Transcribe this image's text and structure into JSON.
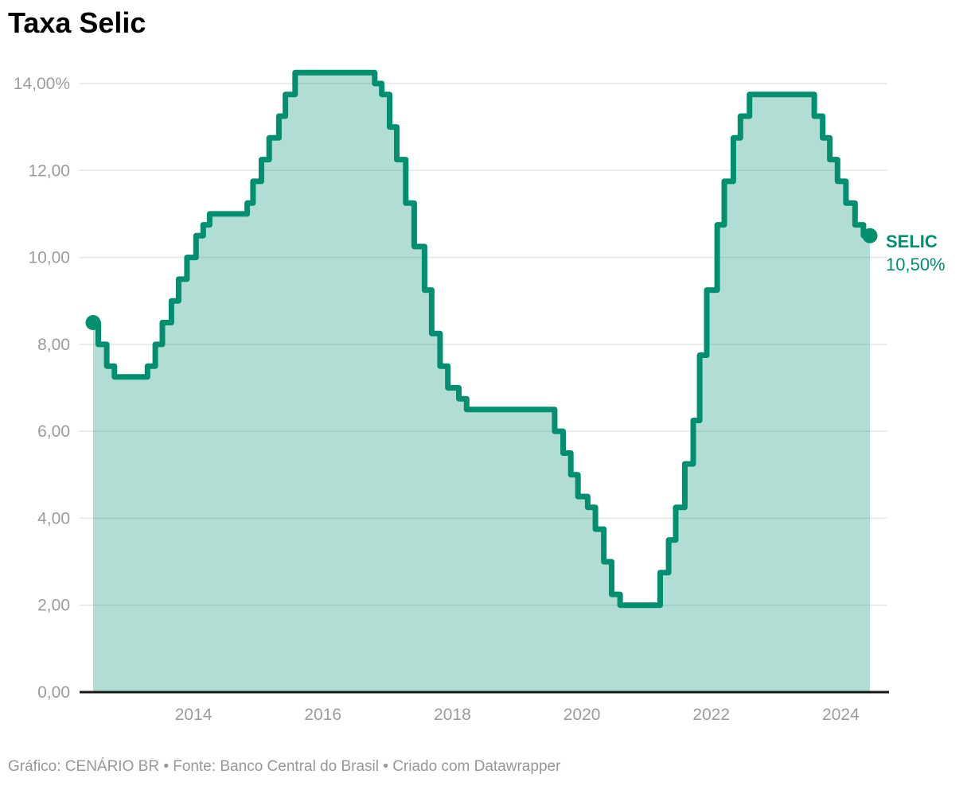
{
  "header": {
    "title": "Taxa Selic"
  },
  "footer": {
    "text": "Gráfico: CENÁRIO BR • Fonte: Banco Central do Brasil • Criado com Datawrapper"
  },
  "colors": {
    "line": "#008f6f",
    "area_opacity": 0.3,
    "grid": "#e6e6e6",
    "axis": "#161616",
    "tick_label": "#9c9c9c",
    "title": "#000000",
    "footer": "#979797",
    "background": "#ffffff"
  },
  "chart_data": {
    "type": "area",
    "step": true,
    "title": "Taxa Selic",
    "xlabel": "",
    "ylabel": "",
    "grid": "horizontal",
    "legend_position": "none",
    "xlim": [
      2012.45,
      2024.45
    ],
    "ylim": [
      0,
      14.25
    ],
    "x_ticks": [
      {
        "value": 2014,
        "label": "2014"
      },
      {
        "value": 2016,
        "label": "2016"
      },
      {
        "value": 2018,
        "label": "2018"
      },
      {
        "value": 2020,
        "label": "2020"
      },
      {
        "value": 2022,
        "label": "2022"
      },
      {
        "value": 2024,
        "label": "2024"
      }
    ],
    "y_ticks": [
      {
        "value": 0,
        "label": "0,00"
      },
      {
        "value": 2,
        "label": "2,00"
      },
      {
        "value": 4,
        "label": "4,00"
      },
      {
        "value": 6,
        "label": "6,00"
      },
      {
        "value": 8,
        "label": "8,00"
      },
      {
        "value": 10,
        "label": "10,00"
      },
      {
        "value": 12,
        "label": "12,00"
      },
      {
        "value": 14,
        "label": "14,00%"
      }
    ],
    "end_label": {
      "title": "SELIC",
      "value": "10,50%"
    },
    "series": [
      {
        "name": "SELIC",
        "unit": "%",
        "points": [
          [
            2012.45,
            8.5
          ],
          [
            2012.53,
            8.0
          ],
          [
            2012.66,
            7.5
          ],
          [
            2012.78,
            7.25
          ],
          [
            2013.29,
            7.5
          ],
          [
            2013.41,
            8.0
          ],
          [
            2013.52,
            8.5
          ],
          [
            2013.66,
            9.0
          ],
          [
            2013.77,
            9.5
          ],
          [
            2013.9,
            10.0
          ],
          [
            2014.04,
            10.5
          ],
          [
            2014.15,
            10.75
          ],
          [
            2014.25,
            11.0
          ],
          [
            2014.83,
            11.25
          ],
          [
            2014.92,
            11.75
          ],
          [
            2015.05,
            12.25
          ],
          [
            2015.17,
            12.75
          ],
          [
            2015.32,
            13.25
          ],
          [
            2015.42,
            13.75
          ],
          [
            2015.57,
            14.25
          ],
          [
            2016.8,
            14.0
          ],
          [
            2016.91,
            13.75
          ],
          [
            2017.03,
            13.0
          ],
          [
            2017.14,
            12.25
          ],
          [
            2017.28,
            11.25
          ],
          [
            2017.41,
            10.25
          ],
          [
            2017.57,
            9.25
          ],
          [
            2017.68,
            8.25
          ],
          [
            2017.81,
            7.5
          ],
          [
            2017.93,
            7.0
          ],
          [
            2018.1,
            6.75
          ],
          [
            2018.22,
            6.5
          ],
          [
            2019.58,
            6.0
          ],
          [
            2019.71,
            5.5
          ],
          [
            2019.83,
            5.0
          ],
          [
            2019.94,
            4.5
          ],
          [
            2020.09,
            4.25
          ],
          [
            2020.21,
            3.75
          ],
          [
            2020.34,
            3.0
          ],
          [
            2020.46,
            2.25
          ],
          [
            2020.59,
            2.0
          ],
          [
            2021.21,
            2.75
          ],
          [
            2021.34,
            3.5
          ],
          [
            2021.45,
            4.25
          ],
          [
            2021.59,
            5.25
          ],
          [
            2021.72,
            6.25
          ],
          [
            2021.82,
            7.75
          ],
          [
            2021.93,
            9.25
          ],
          [
            2022.09,
            10.75
          ],
          [
            2022.2,
            11.75
          ],
          [
            2022.34,
            12.75
          ],
          [
            2022.45,
            13.25
          ],
          [
            2022.59,
            13.75
          ],
          [
            2023.59,
            13.25
          ],
          [
            2023.72,
            12.75
          ],
          [
            2023.83,
            12.25
          ],
          [
            2023.95,
            11.75
          ],
          [
            2024.08,
            11.25
          ],
          [
            2024.22,
            10.75
          ],
          [
            2024.35,
            10.5
          ],
          [
            2024.45,
            10.5
          ]
        ]
      }
    ]
  }
}
